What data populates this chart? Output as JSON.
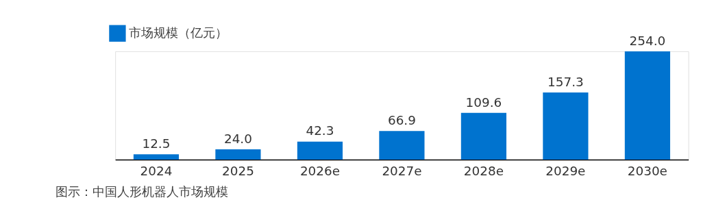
{
  "chart_data": {
    "type": "bar",
    "categories": [
      "2024",
      "2025",
      "2026e",
      "2027e",
      "2028e",
      "2029e",
      "2030e"
    ],
    "series": [
      {
        "name": "市场规模（亿元）",
        "color": "#0073cf",
        "values": [
          12.5,
          24.0,
          42.3,
          66.9,
          109.6,
          157.3,
          254.0
        ],
        "value_labels": [
          "12.5",
          "24.0",
          "42.3",
          "66.9",
          "109.6",
          "157.3",
          "254.0"
        ]
      }
    ],
    "legend": "top left",
    "annotations": [
      "图示：中国人形机器人市场规模"
    ]
  }
}
